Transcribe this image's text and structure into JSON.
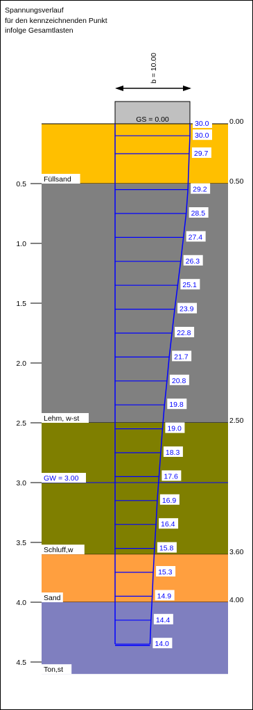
{
  "title_lines": [
    "Spannungsverlauf",
    "für den kennzeichnenden Punkt",
    "infolge Gesamtlasten"
  ],
  "foundation": {
    "width_label": "b = 10.00",
    "gs_label": "GS = 0.00"
  },
  "groundwater": {
    "label": "GW = 3.00",
    "depth": 3.0
  },
  "layers": [
    {
      "name": "Füllsand",
      "top": 0.0,
      "bottom": 0.5,
      "color": "#FFBF00",
      "bottom_label": "0.50"
    },
    {
      "name": "Lehm, w-st",
      "top": 0.5,
      "bottom": 2.5,
      "color": "#808080",
      "bottom_label": "2.50"
    },
    {
      "name": "Schluff,w",
      "top": 2.5,
      "bottom": 3.6,
      "color": "#7F7F00",
      "bottom_label": "3.60"
    },
    {
      "name": "Sand",
      "top": 3.6,
      "bottom": 4.0,
      "color": "#FF9F3F",
      "bottom_label": "4.00"
    },
    {
      "name": "Ton,st",
      "top": 4.0,
      "bottom": 4.6,
      "color": "#7F7FBF",
      "bottom_label": ""
    }
  ],
  "surface_label": "0.00",
  "depth_axis": {
    "ticks": [
      "0.5",
      "1.0",
      "1.5",
      "2.0",
      "2.5",
      "3.0",
      "3.5",
      "4.0",
      "4.5"
    ]
  },
  "chart_data": {
    "type": "line",
    "title": "Spannungsverlauf für den kennzeichnenden Punkt infolge Gesamtlasten",
    "depths": [
      0.0,
      0.1,
      0.25,
      0.55,
      0.75,
      0.95,
      1.15,
      1.35,
      1.55,
      1.75,
      1.95,
      2.15,
      2.35,
      2.55,
      2.75,
      2.95,
      3.15,
      3.35,
      3.55,
      3.75,
      3.95,
      4.15,
      4.35
    ],
    "values": [
      "30.0",
      "30.0",
      "29.7",
      "29.2",
      "28.5",
      "27.4",
      "26.3",
      "25.1",
      "23.9",
      "22.8",
      "21.7",
      "20.8",
      "19.8",
      "19.0",
      "18.3",
      "17.6",
      "16.9",
      "16.4",
      "15.8",
      "15.3",
      "14.9",
      "14.4",
      "14.0"
    ]
  },
  "colors": {
    "stress": "#0000FF",
    "label_bg": "#FFFFFF",
    "foundation": "#C0C0C0"
  }
}
